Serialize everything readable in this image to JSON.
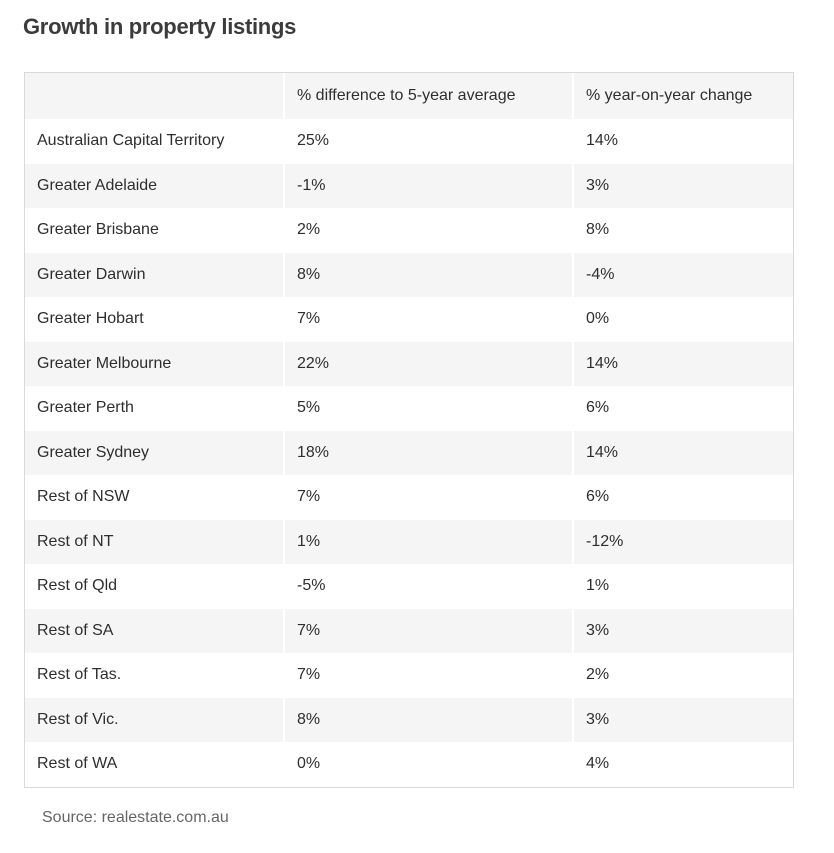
{
  "title": "Growth in property listings",
  "table": {
    "headers": [
      "",
      "% difference to 5-year average",
      "% year-on-year change"
    ],
    "rows": [
      [
        "Australian Capital Territory",
        "25%",
        "14%"
      ],
      [
        "Greater Adelaide",
        "-1%",
        "3%"
      ],
      [
        "Greater Brisbane",
        "2%",
        "8%"
      ],
      [
        "Greater Darwin",
        "8%",
        "-4%"
      ],
      [
        "Greater Hobart",
        "7%",
        "0%"
      ],
      [
        "Greater Melbourne",
        "22%",
        "14%"
      ],
      [
        "Greater Perth",
        "5%",
        "6%"
      ],
      [
        "Greater Sydney",
        "18%",
        "14%"
      ],
      [
        "Rest of NSW",
        "7%",
        "6%"
      ],
      [
        "Rest of NT",
        "1%",
        "-12%"
      ],
      [
        "Rest of Qld",
        "-5%",
        "1%"
      ],
      [
        "Rest of SA",
        "7%",
        "3%"
      ],
      [
        "Rest of Tas.",
        "7%",
        "2%"
      ],
      [
        "Rest of Vic.",
        "8%",
        "3%"
      ],
      [
        "Rest of WA",
        "0%",
        "4%"
      ]
    ]
  },
  "source": "Source: realestate.com.au"
}
